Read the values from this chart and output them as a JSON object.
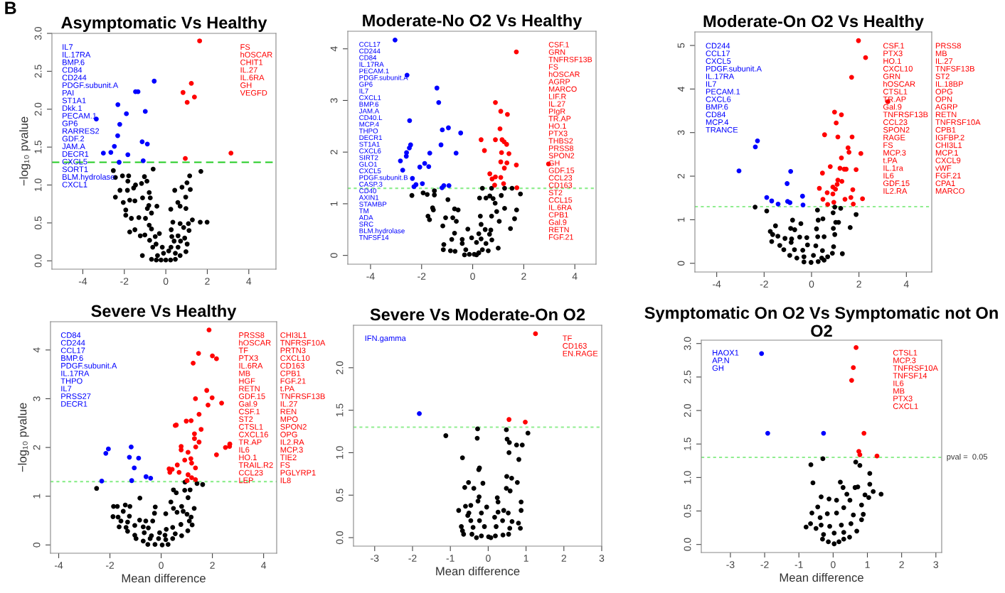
{
  "chart_data": [
    {
      "type": "scatter",
      "title": "Asymptomatic Vs Healthy",
      "ylabel": "−log₁₀ pvalue",
      "marker": "circle",
      "xlim": [
        -5.49,
        5.31
      ],
      "ylim": [
        -0.11,
        3.0
      ],
      "xticks": [
        -4,
        -2,
        0,
        2,
        4
      ],
      "yticks": [
        {
          "value": 0,
          "label": "0.0"
        },
        {
          "value": 0.5,
          "label": "0.5"
        },
        {
          "value": 1,
          "label": "1.0"
        },
        {
          "value": 1.5,
          "label": "1.5"
        },
        {
          "value": 2,
          "label": "2.0"
        },
        {
          "value": 2.5,
          "label": "2.5"
        },
        {
          "value": 3,
          "label": "3.0"
        }
      ],
      "ref_lines": [
        {
          "axis": "y",
          "value": 1.3,
          "color": "#22cc22",
          "line_style": "dashed"
        }
      ],
      "annotations": [
        "IL7\nIL.17RA\nBMP.6\nCD84\nCD244\nPDGF.subunit.A\nPAI\nST1A1\nDkk.1\nPECAM.1\nGP6\nRARRES2\nGDF.2\nJAM.A\nDECR1\nCXCL5\nSORT1\nBLM.hydrolase\nCXCL1",
        "FS\nhOSCAR\nCHIT1\nIL.27\nIL.6RA\nGH\nVEGFD",
        "B"
      ],
      "series": [
        {
          "color": "#0000ff",
          "x": [
            -0.56,
            -1.46,
            -1.34,
            -2.31,
            -0.99,
            -1.9,
            -3.35,
            -2.22,
            -2.32,
            -1.14,
            -0.89,
            -2.48,
            -3.01,
            -2.65,
            -1.83,
            -2.25,
            -1.09
          ],
          "values": [
            2.37,
            2.23,
            2.23,
            2.06,
            1.97,
            1.94,
            1.87,
            1.8,
            1.65,
            1.57,
            1.54,
            1.51,
            1.42,
            1.43,
            1.4,
            1.3,
            1.32
          ]
        },
        {
          "color": "#ff0000",
          "x": [
            1.63,
            1.23,
            0.83,
            1.38,
            1.03,
            3.14,
            0.94
          ],
          "values": [
            2.9,
            2.34,
            2.22,
            2.16,
            2.09,
            1.42,
            1.35
          ]
        },
        {
          "color": "#000000",
          "x": [
            -2.53,
            -0.61,
            1.69,
            -2.43,
            -2.09,
            -1.79,
            -1.03,
            1.15,
            -1.83,
            -0.91,
            1.02,
            -1.17,
            -1.46,
            0.78,
            -1.55,
            -2.21,
            -1.85,
            -0.8,
            0.43,
            1.18,
            -2.43,
            -1.12,
            -0.75,
            0.96,
            -2.05,
            -1.74,
            -1.49,
            0.58,
            -0.82,
            -0.43,
            0.69,
            0.97,
            0.24,
            -1.93,
            -0.89,
            -1.93,
            -1.66,
            -1.3,
            -0.98,
            -0.69,
            1.66,
            1.99,
            1.28,
            0.34,
            0.69,
            1.09,
            -0.8,
            -0.69,
            -1.74,
            -1.49,
            0.26,
            0.86,
            1.12,
            -1.23,
            -1.01,
            -0.51,
            -0.31,
            0.29,
            0.59,
            0.91,
            -0.78,
            -0.47,
            0.4,
            0.71,
            1.03,
            -0.63,
            -0.17,
            0.25,
            0.59,
            0.97,
            -1.13,
            -0.69,
            -0.4,
            -0.11,
            0.14,
            0.46,
            0.69,
            -0.23,
            0.0,
            0.23,
            0.46,
            -0.46
          ],
          "values": [
            1.19,
            1.21,
            1.18,
            1.1,
            1.12,
            1.12,
            1.11,
            1.12,
            1.05,
            1.05,
            1.03,
            1.02,
            1.0,
            0.97,
            0.96,
            0.93,
            0.93,
            0.9,
            0.93,
            0.94,
            0.84,
            0.83,
            0.83,
            0.84,
            0.77,
            0.8,
            0.79,
            0.77,
            0.73,
            0.72,
            0.72,
            0.69,
            0.68,
            0.67,
            0.69,
            0.6,
            0.56,
            0.57,
            0.56,
            0.63,
            0.51,
            0.51,
            0.54,
            0.51,
            0.49,
            0.49,
            0.47,
            0.42,
            0.38,
            0.41,
            0.41,
            0.44,
            0.4,
            0.33,
            0.34,
            0.32,
            0.36,
            0.32,
            0.33,
            0.3,
            0.27,
            0.22,
            0.26,
            0.26,
            0.22,
            0.18,
            0.18,
            0.18,
            0.18,
            0.12,
            0.07,
            0.02,
            0.07,
            0.1,
            0.13,
            0.1,
            0.07,
            0.01,
            0.01,
            0.01,
            0.02,
            0.01
          ]
        }
      ]
    },
    {
      "type": "scatter",
      "title": "Moderate-No O2 Vs Healthy",
      "marker": "circle",
      "xlim": [
        -4.89,
        4.83
      ],
      "ylim": [
        -0.17,
        4.34
      ],
      "xticks": [
        -4,
        -2,
        0,
        2,
        4
      ],
      "yticks": [
        0,
        1,
        2,
        3,
        4
      ],
      "ref_lines": [
        {
          "axis": "y",
          "value": 1.3,
          "color": "#90ee90",
          "line_style": "dotted"
        }
      ],
      "annotations": [
        "CCL17\nCD244\nCD84\nIL.17RA\nPECAM.1\nPDGF.subunit.A\nGP6\nIL7\nCXCL1\nBMP.6\nJAM.A\nCD40.L\nMCP.4\nTHPO\nDECR1\nST1A1\nCXCL6\nSIRT2\nGLO1\nCXCL5\nPDGF.subunit.B\nCASP.3\nCD40\nAXIN1\nSTAMBP\nTM\nADA\nSRC\nBLM.hydrolase\nTNFSF14",
        "CSF.1\nGRN\nTNFRSF13B\nFS\nhOSCAR\nAGRP\nMARCO\nLIF.R\nIL.27\nPIgR\nTR.AP\nHO.1\nPTX3\nTHBS2\nPRSS8\nSPON2\nGH\nGDF.15\nCCL23\nCD163\nST2\nCCL15\nIL.6RA\nCPB1\nGal.9\nRETN\nFGF.21"
      ],
      "series": [
        {
          "color": "#0000ff",
          "x": [
            -3.04,
            -2.57,
            -1.4,
            -1.33,
            -2.47,
            -1.19,
            -0.95,
            -0.47,
            -2.43,
            -2.48,
            -1.24,
            -2.59,
            -1.68,
            -0.65,
            -2.6,
            -2.83,
            -1.88,
            -2.07,
            -1.72,
            -2.74,
            -2.36,
            -2.22,
            -1.97,
            -1.13,
            -0.93,
            -1.2,
            -2.3
          ],
          "values": [
            4.17,
            3.49,
            3.24,
            2.96,
            2.61,
            2.43,
            2.47,
            2.37,
            2.14,
            2.08,
            2.14,
            1.99,
            1.98,
            1.98,
            1.92,
            1.83,
            1.78,
            1.71,
            1.72,
            1.65,
            1.49,
            1.37,
            1.39,
            1.35,
            1.35,
            1.31,
            1.33
          ]
        },
        {
          "color": "#ff0000",
          "x": [
            1.71,
            0.89,
            1.1,
            1.36,
            1.07,
            0.33,
            0.89,
            1.15,
            1.23,
            1.33,
            0.46,
            1.13,
            1.42,
            1.1,
            1.34,
            1.71,
            2.97,
            1.24,
            0.67,
            0.76,
            0.89,
            1.1,
            1.21,
            0.86,
            1.73
          ],
          "values": [
            3.94,
            2.96,
            2.79,
            2.73,
            2.45,
            2.24,
            2.24,
            2.24,
            2.2,
            2.15,
            2.03,
            1.99,
            1.97,
            1.81,
            1.79,
            1.75,
            1.77,
            1.69,
            1.58,
            1.48,
            1.52,
            1.51,
            1.39,
            1.36,
            1.31
          ]
        },
        {
          "color": "#000000",
          "x": [
            0.38,
            0.74,
            1.25,
            1.54,
            -1.5,
            -2.38,
            -1.94,
            -1.78,
            -1.5,
            -0.97,
            0.27,
            0.52,
            0.67,
            0.8,
            1.12,
            1.87,
            0.88,
            -1.57,
            -1.54,
            -0.71,
            -0.57,
            1.25,
            1.72,
            0.94,
            0.74,
            0.3,
            -1.75,
            -1.69,
            -1.06,
            -0.78,
            -0.64,
            1.04,
            1.64,
            0.33,
            -1.17,
            1.48,
            -0.19,
            0.49,
            0.71,
            -0.71,
            0.24,
            0.66,
            -0.82,
            -0.41,
            -0.04,
            0.33,
            0.75,
            -1.13,
            -0.41,
            0.15,
            0.52,
            1.0,
            -1.15,
            -0.87,
            -0.69,
            -0.27,
            -0.13,
            0.06,
            0.24,
            0.38,
            0.61,
            -0.32,
            0.15
          ],
          "values": [
            1.3,
            1.3,
            1.3,
            1.3,
            1.25,
            1.16,
            1.21,
            1.18,
            1.17,
            1.08,
            1.11,
            1.11,
            1.15,
            1.1,
            1.16,
            1.19,
            1.01,
            0.92,
            0.88,
            0.9,
            0.88,
            0.91,
            0.88,
            0.85,
            0.76,
            0.76,
            0.76,
            0.69,
            0.73,
            0.73,
            0.66,
            0.66,
            0.71,
            0.6,
            0.57,
            0.52,
            0.51,
            0.5,
            0.49,
            0.43,
            0.42,
            0.41,
            0.31,
            0.31,
            0.34,
            0.32,
            0.3,
            0.21,
            0.23,
            0.25,
            0.23,
            0.14,
            0.11,
            0.09,
            0.08,
            0.11,
            0.02,
            0.02,
            0.05,
            0.11,
            0.09,
            0.01,
            0.01
          ]
        }
      ]
    },
    {
      "type": "scatter",
      "title": "Moderate-On O2 Vs Healthy",
      "marker": "circle",
      "xlim": [
        -4.92,
        5.07
      ],
      "ylim": [
        -0.2,
        5.31
      ],
      "xticks": [
        -4,
        -2,
        0,
        2,
        4
      ],
      "yticks": [
        0,
        1,
        2,
        3,
        4,
        5
      ],
      "ref_lines": [
        {
          "axis": "y",
          "value": 1.3,
          "color": "#90ee90",
          "line_style": "dotted"
        }
      ],
      "annotations": [
        "CD244\nCCL17\nCXCL5\nPDGF.subunit.A\nIL.17RA\nIL7\nPECAM.1\nCXCL6\nBMP.6\nCD84\nMCP.4\nTRANCE",
        "CSF.1\nPTX3\nHO.1\nCXCL10\nGRN\nhOSCAR\nCTSL1\nTR.AP\nGal.9\nTNFRSF13B\nCCL23\nSPON2\nRAGE\nFS\nMCP.3\nt.PA\nIL.1ra\nIL6\nGDF.15\nIL2.RA\nPRSS8\nMB\nIL.27\nTNFSF13B\nST2\nIL.18BP\nOPG\nOPN\nAGRP\nRETN\nTNFRSF10A\nCPB1\nIGFBP.2\nCHI3L1\nMCP.1\nCXCL9\nvWF\nFGF.21\nCPA1\nMARCO"
      ],
      "series": [
        {
          "color": "#0000ff",
          "x": [
            -2.28,
            -2.37,
            -3.06,
            -0.88,
            -1.03,
            -1.89,
            -1.68,
            -1.41,
            -0.38,
            -1.01,
            -0.91,
            -0.36
          ],
          "values": [
            2.81,
            2.67,
            2.12,
            2.11,
            1.83,
            1.51,
            1.43,
            1.36,
            1.54,
            1.42,
            1.39,
            1.34
          ]
        },
        {
          "color": "#ff0000",
          "x": [
            1.98,
            2.28,
            1.69,
            3.22,
            0.97,
            1.26,
            1.04,
            0.55,
            1.11,
            1.71,
            1.54,
            1.58,
            2.08,
            1.26,
            0.79,
            1.2,
            1.38,
            1.46,
            1.88,
            0.46,
            1.11,
            1.28,
            1.08,
            0.9,
            0.33,
            1.01,
            1.74,
            0.66,
            0.9,
            1.66,
            0.48,
            1.41,
            2.15,
            0.94,
            0.68,
            1.76
          ],
          "values": [
            5.11,
            4.72,
            4.27,
            3.71,
            3.47,
            3.41,
            3.22,
            2.95,
            2.9,
            2.9,
            2.65,
            2.55,
            2.52,
            2.42,
            2.22,
            2.18,
            2.16,
            2.16,
            2.15,
            2.07,
            1.91,
            1.88,
            1.81,
            1.75,
            1.72,
            1.7,
            1.69,
            1.62,
            1.59,
            1.51,
            1.47,
            1.47,
            1.48,
            1.4,
            1.35,
            1.36
          ]
        },
        {
          "color": "#000000",
          "x": [
            -2.38,
            -1.89,
            0.25,
            0.91,
            0.98,
            1.23,
            1.88,
            0.48,
            0.28,
            -0.8,
            -0.45,
            1.02,
            1.14,
            -1.52,
            1.63,
            -0.88,
            -0.71,
            0.21,
            0.92,
            -1.74,
            -1.64,
            -1.42,
            0.98,
            -1.12,
            -0.84,
            -0.5,
            -0.2,
            0.26,
            0.53,
            -1.68,
            -0.86,
            -0.17,
            0.18,
            0.93,
            -1.34,
            -1.17,
            -0.72,
            -0.37,
            0.46,
            0.88,
            1.3,
            -0.92,
            -0.62,
            -0.32,
            0.08,
            0.43,
            0.68,
            -0.32,
            -0.02,
            0.28,
            0.53
          ],
          "values": [
            1.29,
            1.2,
            1.22,
            1.16,
            1.29,
            1.26,
            1.12,
            1.02,
            0.99,
            0.99,
            0.91,
            0.94,
            0.94,
            0.86,
            0.82,
            0.8,
            0.77,
            0.79,
            0.8,
            0.73,
            0.66,
            0.62,
            0.66,
            0.57,
            0.56,
            0.6,
            0.59,
            0.61,
            0.61,
            0.5,
            0.48,
            0.42,
            0.4,
            0.38,
            0.41,
            0.31,
            0.31,
            0.3,
            0.29,
            0.23,
            0.22,
            0.18,
            0.12,
            0.15,
            0.18,
            0.12,
            0.15,
            0.03,
            0.02,
            0.04,
            0.07
          ]
        }
      ]
    },
    {
      "type": "scatter",
      "title": "Severe Vs Healthy",
      "xlabel": "Mean difference",
      "ylabel": "−log₁₀ pvalue",
      "marker": "circle",
      "xlim": [
        -4.32,
        4.51
      ],
      "ylim": [
        -0.17,
        4.58
      ],
      "xticks": [
        -4,
        -2,
        0,
        2,
        4
      ],
      "yticks": [
        0,
        1,
        2,
        3,
        4
      ],
      "ref_lines": [
        {
          "axis": "y",
          "value": 1.3,
          "color": "#90ee90",
          "line_style": "dotted"
        }
      ],
      "annotations": [
        "CD84\nCD244\nCCL17\nBMP.6\nPDGF.subunit.A\nIL.17RA\nTHPO\nIL7\nPRSS27\nDECR1",
        "PRSS8\nhOSCAR\nTF\nPTX3\nIL.6RA\nMB\nHGF\nRETN\nGDF.15\nGal.9\nCSF.1\nST2\nCTSL1\nCXCL16\nTR.AP\nIL6\nHO.1\nTRAIL.R2\nCCL23\nLEP\nCHI3L1\nTNFRSF10A\nPRTN3\nCXCL10\nCD163\nCPB1\nFGF.21\nt.PA\nTNFRSF13B\nIL.27\nREN\nMPO\nSPON2\nOPG\nIL2.RA\nMCP.3\nTIE2\nFS\nPGLYRP1\nIL8"
      ],
      "series": [
        {
          "color": "#0000ff",
          "x": [
            -2.06,
            -2.16,
            -1.17,
            -1.24,
            -0.88,
            -1.05,
            -0.59,
            -0.41,
            -2.32,
            -1.15
          ],
          "values": [
            1.97,
            1.88,
            2.01,
            1.8,
            1.78,
            1.58,
            1.4,
            1.37,
            1.31,
            1.32
          ]
        },
        {
          "color": "#ff0000",
          "x": [
            1.87,
            1.46,
            2.0,
            2.16,
            1.25,
            1.78,
            1.99,
            1.34,
            2.36,
            1.83,
            1.48,
            0.98,
            1.17,
            0.55,
            0.59,
            1.56,
            1.3,
            1.3,
            1.48,
            2.68,
            2.67,
            2.51,
            0.78,
            1.35,
            0.78,
            1.05,
            2.16,
            0.92,
            1.16,
            1.19,
            0.63,
            0.31,
            0.43,
            1.34,
            0.34,
            0.7,
            1.05,
            1.19,
            1.34,
            1.01
          ],
          "values": [
            4.41,
            3.93,
            3.88,
            3.82,
            3.73,
            3.17,
            3.02,
            3.0,
            2.91,
            2.87,
            2.68,
            2.54,
            2.55,
            2.45,
            2.46,
            2.37,
            2.28,
            2.18,
            2.11,
            2.07,
            2.02,
            2.0,
            2.02,
            2.01,
            1.95,
            1.9,
            1.85,
            1.74,
            1.77,
            1.68,
            1.64,
            1.56,
            1.55,
            1.58,
            1.49,
            1.49,
            1.44,
            1.38,
            1.34,
            1.32
          ]
        },
        {
          "color": "#000000",
          "x": [
            -2.52,
            -0.83,
            0.93,
            1.4,
            1.62,
            0.48,
            0.59,
            0.92,
            1.13,
            1.05,
            0.38,
            -1.86,
            -1.71,
            -1.4,
            -1.22,
            -1.48,
            -0.23,
            0.48,
            0.8,
            1.29,
            0.86,
            0.18,
            -0.26,
            0.62,
            -1.88,
            -1.68,
            -1.24,
            1.01,
            1.17,
            -1.57,
            -1.31,
            -0.84,
            -0.6,
            -0.33,
            1.1,
            -1.64,
            -1.37,
            -1.03,
            -0.7,
            -0.5,
            0.77,
            1.21,
            0.2,
            0.45,
            -1.31,
            -0.66,
            -0.06,
            1.04,
            -1.03,
            -0.38,
            0.15,
            0.55,
            0.8,
            -0.98,
            -0.7,
            -0.43,
            -0.1,
            0.18,
            0.45,
            -0.52,
            -0.24,
            0.04,
            0.27
          ],
          "values": [
            1.16,
            0.96,
            1.29,
            1.26,
            1.24,
            1.13,
            1.07,
            1.12,
            1.13,
            0.97,
            0.88,
            0.79,
            0.79,
            0.82,
            0.79,
            0.69,
            0.78,
            0.75,
            0.79,
            0.75,
            0.69,
            0.64,
            0.65,
            0.67,
            0.58,
            0.57,
            0.59,
            0.63,
            0.57,
            0.49,
            0.47,
            0.51,
            0.49,
            0.49,
            0.49,
            0.37,
            0.36,
            0.4,
            0.37,
            0.35,
            0.42,
            0.41,
            0.32,
            0.36,
            0.28,
            0.25,
            0.25,
            0.29,
            0.2,
            0.19,
            0.2,
            0.23,
            0.19,
            0.13,
            0.08,
            0.13,
            0.13,
            0.11,
            0.13,
            0.01,
            0.01,
            0.0,
            0.01
          ]
        }
      ]
    },
    {
      "type": "scatter",
      "title": "Severe Vs Moderate-On O2",
      "xlabel": "Mean difference",
      "marker": "circle",
      "xlim": [
        -3.56,
        3.0
      ],
      "ylim": [
        -0.1,
        2.5
      ],
      "xticks": [
        -3,
        -2,
        -1,
        0,
        1,
        2,
        3
      ],
      "yticks": [
        {
          "value": 0,
          "label": "0.0"
        },
        {
          "value": 0.5,
          "label": "0.5"
        },
        {
          "value": 1,
          "label": "1.0"
        },
        {
          "value": 1.5,
          "label": "1.5"
        },
        {
          "value": 2,
          "label": "2.0"
        }
      ],
      "ref_lines": [
        {
          "axis": "y",
          "value": 1.3,
          "color": "#90ee90",
          "line_style": "dotted"
        }
      ],
      "annotations": [
        "IFN.gamma",
        "TF\nCD163\nEN.RAGE"
      ],
      "series": [
        {
          "color": "#0000ff",
          "x": [
            -1.82
          ],
          "values": [
            1.46
          ]
        },
        {
          "color": "#ff0000",
          "x": [
            1.25,
            0.55,
            0.98
          ],
          "values": [
            2.4,
            1.39,
            1.36
          ]
        },
        {
          "color": "#000000",
          "x": [
            -0.28,
            0.48,
            1.05,
            -1.12,
            -0.29,
            0.5,
            0.56,
            0.75,
            0.9,
            0.55,
            -0.68,
            0.81,
            -0.23,
            -0.25,
            0.49,
            0.62,
            0.77,
            -0.14,
            -0.52,
            -0.62,
            -0.38,
            0.48,
            0.58,
            -0.24,
            0.24,
            -0.27,
            0.26,
            0.87,
            -0.6,
            -0.46,
            -0.04,
            -0.78,
            0.87,
            0.41,
            -0.51,
            -0.18,
            0.26,
            0.53,
            -0.54,
            0.17,
            -0.46,
            -0.23,
            0.38,
            0.63,
            0.8,
            -0.1,
            -0.71,
            -0.4,
            0.21,
            0.85,
            0.57,
            -0.68,
            -0.65,
            -0.43,
            -0.18,
            0.01,
            0.19,
            0.39,
            0.54,
            -0.31,
            0.07
          ],
          "values": [
            1.28,
            1.27,
            1.23,
            1.2,
            1.17,
            1.16,
            1.12,
            1.09,
            1.09,
            1.0,
            0.94,
            0.92,
            0.82,
            0.8,
            0.72,
            0.7,
            0.65,
            0.64,
            0.65,
            0.59,
            0.58,
            0.58,
            0.55,
            0.48,
            0.47,
            0.43,
            0.42,
            0.42,
            0.37,
            0.38,
            0.36,
            0.32,
            0.32,
            0.32,
            0.29,
            0.29,
            0.3,
            0.29,
            0.26,
            0.24,
            0.2,
            0.2,
            0.2,
            0.19,
            0.17,
            0.13,
            0.13,
            0.12,
            0.13,
            0.11,
            0.11,
            0.08,
            0.04,
            0.04,
            0.02,
            0.01,
            0.02,
            0.03,
            0.04,
            0.0,
            0.0
          ]
        }
      ]
    },
    {
      "type": "scatter",
      "title": "Symptomatic On O2 Vs Symptomatic not On O2",
      "xlabel": "Mean difference",
      "marker": "circle",
      "xlim": [
        -3.85,
        3.17
      ],
      "ylim": [
        -0.12,
        3.05
      ],
      "xticks": [
        -3,
        -2,
        -1,
        0,
        1,
        2,
        3
      ],
      "yticks": [
        {
          "value": 0,
          "label": "0.0"
        },
        {
          "value": 0.5,
          "label": "0.5"
        },
        {
          "value": 1,
          "label": "1.0"
        },
        {
          "value": 1.5,
          "label": "1.5"
        },
        {
          "value": 2,
          "label": "2.0"
        },
        {
          "value": 2.5,
          "label": "2.5"
        },
        {
          "value": 3,
          "label": "3.0"
        }
      ],
      "ref_lines": [
        {
          "axis": "y",
          "value": 1.3,
          "color": "#90ee90",
          "line_style": "dotted"
        }
      ],
      "annotations": [
        "HAOX1\nAP.N\nGH",
        "CTSL1\nMCP.3\nTNFRSF10A\nTNFSF14\nIL6\nMB\nPTX3\nCXCL1",
        "pval =  0.05"
      ],
      "series": [
        {
          "color": "#0000ff",
          "x": [
            -2.09,
            -1.91,
            -0.28
          ],
          "values": [
            2.85,
            1.66,
            1.66
          ]
        },
        {
          "color": "#ff0000",
          "x": [
            0.67,
            0.59,
            0.54,
            0.9,
            0.75,
            0.78,
            1.28
          ],
          "values": [
            2.94,
            2.64,
            2.45,
            1.66,
            1.39,
            1.34,
            1.32
          ]
        },
        {
          "color": "#000000",
          "x": [
            -0.3,
            0.66,
            0.78,
            -0.65,
            1.07,
            -0.59,
            0.21,
            1.07,
            0.29,
            0.64,
            0.72,
            1.4,
            1.17,
            0.93,
            1.04,
            0.4,
            -0.35,
            -0.12,
            0.1,
            0.49,
            0.83,
            -0.45,
            0.31,
            -0.62,
            -0.17,
            0.1,
            0.88,
            0.59,
            -0.38,
            0.83,
            -0.66,
            -0.79,
            -0.5,
            -0.35,
            -0.1,
            0.24,
            0.52,
            0.69,
            -0.28,
            0.03,
            0.31,
            0.48,
            -0.31,
            -0.14,
            0.03,
            0.17,
            0.31
          ],
          "values": [
            1.28,
            1.23,
            1.18,
            1.19,
            1.06,
            0.92,
            0.93,
            0.9,
            0.85,
            0.85,
            0.86,
            0.75,
            0.79,
            0.74,
            0.7,
            0.75,
            0.71,
            0.68,
            0.66,
            0.66,
            0.59,
            0.56,
            0.55,
            0.47,
            0.46,
            0.47,
            0.45,
            0.44,
            0.4,
            0.37,
            0.31,
            0.26,
            0.24,
            0.29,
            0.27,
            0.29,
            0.31,
            0.2,
            0.15,
            0.17,
            0.18,
            0.11,
            0.08,
            0.04,
            0.01,
            0.04,
            0.08
          ]
        }
      ]
    }
  ]
}
